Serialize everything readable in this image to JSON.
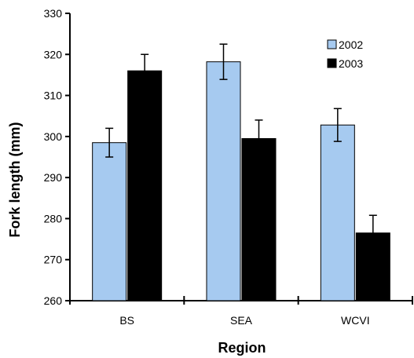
{
  "chart_data": {
    "type": "bar",
    "title": "",
    "xlabel": "Region",
    "ylabel": "Fork length (mm)",
    "categories": [
      "BS",
      "SEA",
      "WCVI"
    ],
    "ylim": [
      260,
      330
    ],
    "yticks": [
      260,
      270,
      280,
      290,
      300,
      310,
      320,
      330
    ],
    "grid": false,
    "legend_position": "top-right",
    "series": [
      {
        "name": "2002",
        "color": "#A6CAF0",
        "values": [
          298.5,
          318.2,
          302.8
        ],
        "errors": [
          3.5,
          4.3,
          4.0
        ]
      },
      {
        "name": "2003",
        "color": "#000000",
        "values": [
          316.0,
          299.5,
          276.5
        ],
        "errors": [
          4.0,
          4.5,
          4.3
        ]
      }
    ]
  }
}
